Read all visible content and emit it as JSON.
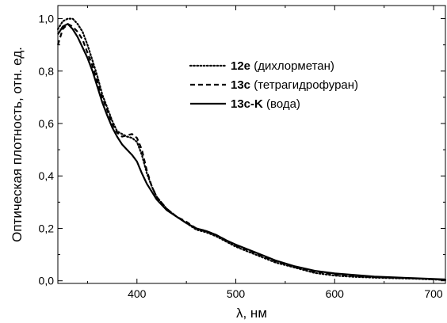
{
  "chart_data": {
    "type": "line",
    "xlabel": "λ, нм",
    "ylabel": "Оптическая плотность, отн. ед.",
    "xlim": [
      320,
      712
    ],
    "ylim": [
      -0.01,
      1.05
    ],
    "x_ticks": [
      400,
      500,
      600,
      700
    ],
    "x_tick_labels": [
      "400",
      "500",
      "600",
      "700"
    ],
    "y_ticks": [
      0.0,
      0.2,
      0.4,
      0.6,
      0.8,
      1.0
    ],
    "y_tick_labels": [
      "0,0",
      "0,2",
      "0,4",
      "0,6",
      "0,8",
      "1,0"
    ],
    "grid": false,
    "legend_position": "top-right",
    "series": [
      {
        "name": "12e",
        "solvent": "(дихлорметан)",
        "style": "dotted",
        "x": [
          320,
          325,
          330,
          335,
          340,
          345,
          350,
          355,
          360,
          365,
          370,
          375,
          380,
          385,
          390,
          395,
          400,
          405,
          410,
          415,
          420,
          430,
          440,
          450,
          460,
          470,
          480,
          490,
          500,
          520,
          540,
          560,
          580,
          600,
          620,
          640,
          660,
          680,
          700,
          712
        ],
        "y": [
          0.96,
          0.99,
          1.0,
          1.0,
          0.98,
          0.95,
          0.9,
          0.84,
          0.78,
          0.71,
          0.66,
          0.61,
          0.57,
          0.56,
          0.55,
          0.545,
          0.53,
          0.48,
          0.41,
          0.36,
          0.32,
          0.275,
          0.245,
          0.22,
          0.195,
          0.185,
          0.17,
          0.15,
          0.13,
          0.1,
          0.07,
          0.05,
          0.03,
          0.02,
          0.015,
          0.012,
          0.01,
          0.008,
          0.005,
          0.003
        ]
      },
      {
        "name": "13c",
        "solvent": "(тетрагидрофуран)",
        "style": "dashed",
        "x": [
          320,
          325,
          330,
          335,
          340,
          345,
          350,
          355,
          360,
          365,
          370,
          375,
          380,
          385,
          390,
          395,
          400,
          405,
          410,
          415,
          420,
          430,
          440,
          450,
          460,
          470,
          480,
          490,
          500,
          520,
          540,
          560,
          580,
          600,
          620,
          640,
          660,
          680,
          700,
          712
        ],
        "y": [
          0.9,
          0.96,
          0.98,
          0.97,
          0.95,
          0.92,
          0.87,
          0.82,
          0.76,
          0.7,
          0.65,
          0.6,
          0.565,
          0.55,
          0.555,
          0.56,
          0.545,
          0.5,
          0.42,
          0.36,
          0.32,
          0.275,
          0.245,
          0.225,
          0.2,
          0.19,
          0.175,
          0.155,
          0.135,
          0.105,
          0.075,
          0.052,
          0.035,
          0.025,
          0.018,
          0.014,
          0.011,
          0.009,
          0.006,
          0.004
        ]
      },
      {
        "name": "13c-K",
        "solvent": "(вода)",
        "style": "solid",
        "x": [
          320,
          325,
          330,
          335,
          340,
          345,
          350,
          355,
          360,
          365,
          370,
          375,
          380,
          385,
          390,
          395,
          400,
          405,
          410,
          415,
          420,
          430,
          440,
          450,
          460,
          470,
          480,
          490,
          500,
          520,
          540,
          560,
          580,
          600,
          620,
          640,
          660,
          680,
          700,
          712
        ],
        "y": [
          0.94,
          0.97,
          0.98,
          0.96,
          0.93,
          0.89,
          0.85,
          0.8,
          0.74,
          0.68,
          0.63,
          0.585,
          0.55,
          0.52,
          0.5,
          0.48,
          0.455,
          0.41,
          0.37,
          0.34,
          0.31,
          0.27,
          0.245,
          0.22,
          0.2,
          0.19,
          0.175,
          0.155,
          0.138,
          0.108,
          0.078,
          0.055,
          0.038,
          0.028,
          0.022,
          0.016,
          0.013,
          0.01,
          0.007,
          0.005
        ]
      }
    ]
  }
}
